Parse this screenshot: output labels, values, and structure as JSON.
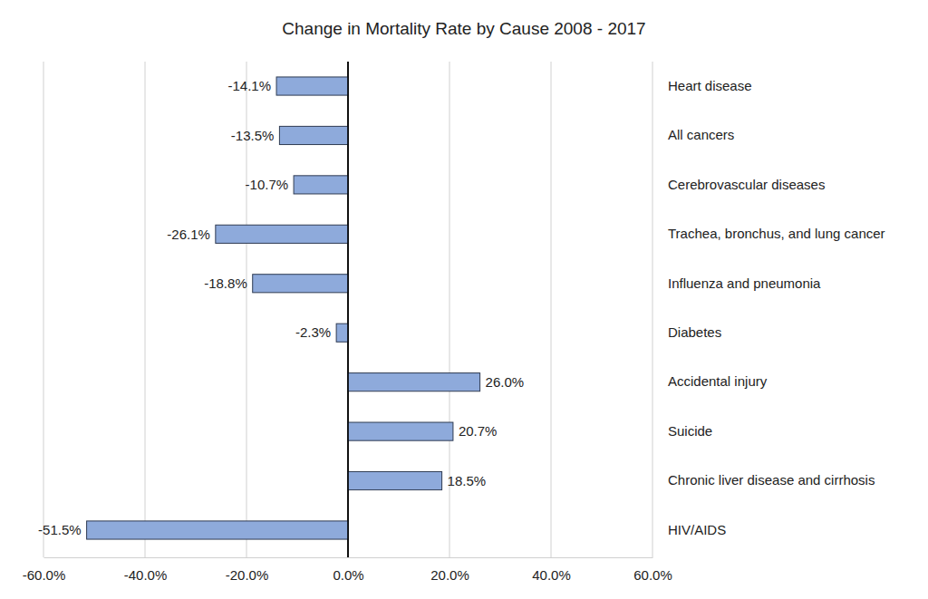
{
  "chart_data": {
    "type": "bar",
    "orientation": "horizontal",
    "title": "Change in Mortality Rate by Cause 2008 - 2017",
    "categories": [
      "Heart disease",
      "All cancers",
      "Cerebrovascular diseases",
      "Trachea, bronchus, and lung cancer",
      "Influenza and pneumonia",
      "Diabetes",
      "Accidental injury",
      "Suicide",
      "Chronic liver disease and cirrhosis",
      "HIV/AIDS"
    ],
    "values": [
      -14.1,
      -13.5,
      -10.7,
      -26.1,
      -18.8,
      -2.3,
      26.0,
      20.7,
      18.5,
      -51.5
    ],
    "value_labels": [
      "-14.1%",
      "-13.5%",
      "-10.7%",
      "-26.1%",
      "-18.8%",
      "-2.3%",
      "26.0%",
      "20.7%",
      "18.5%",
      "-51.5%"
    ],
    "color": "#8eaadb",
    "xlim": [
      -60,
      60
    ],
    "xticks": [
      {
        "value": -60,
        "label": "-60.0%"
      },
      {
        "value": -40,
        "label": "-40.0%"
      },
      {
        "value": -20,
        "label": "-20.0%"
      },
      {
        "value": 0,
        "label": "0.0%"
      },
      {
        "value": 20,
        "label": "20.0%"
      },
      {
        "value": 40,
        "label": "40.0%"
      },
      {
        "value": 60,
        "label": "60.0%"
      }
    ],
    "grid": true,
    "data_labels": true
  }
}
